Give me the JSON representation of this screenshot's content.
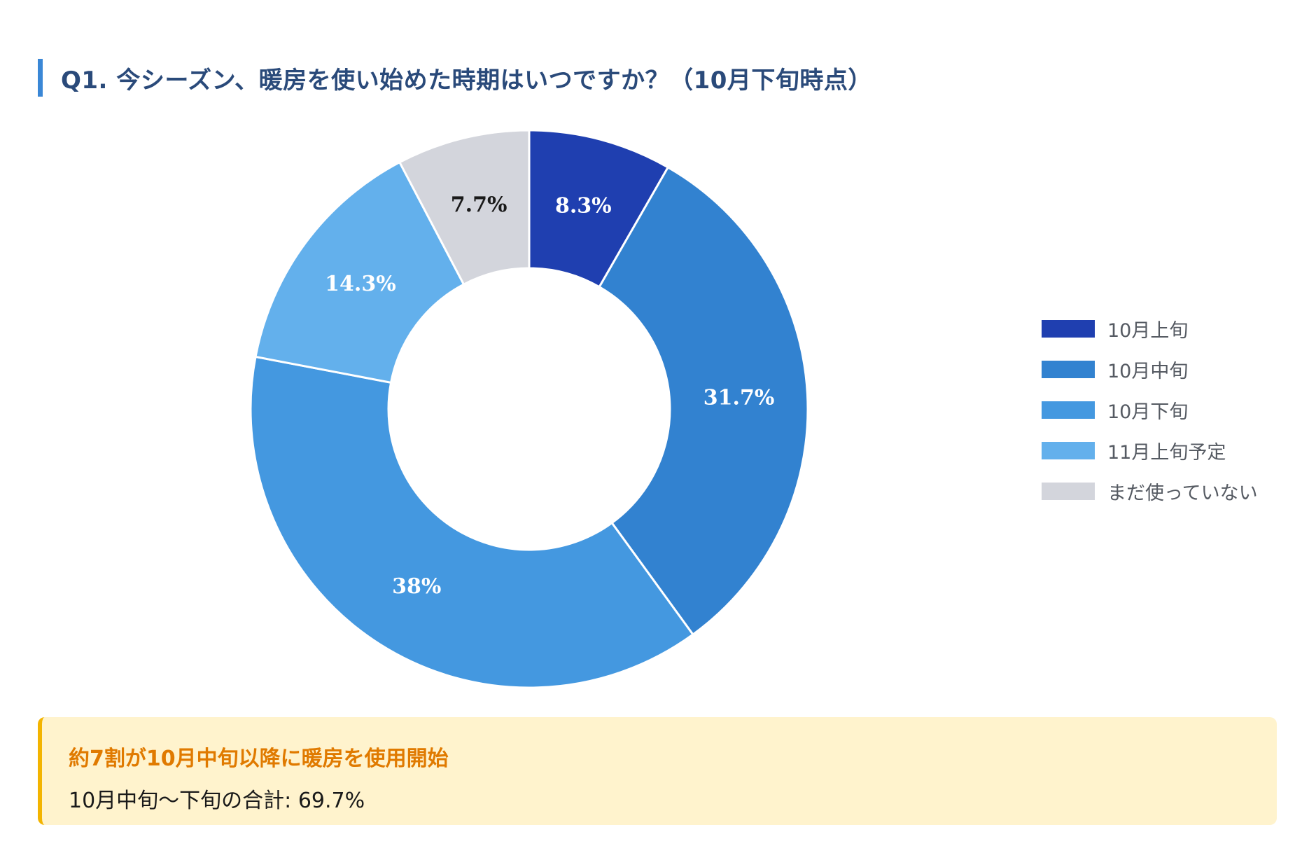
{
  "chart_data": {
    "type": "pie",
    "title": "Q1. 今シーズン、暖房を使い始めた時期はいつですか？（10月下旬時点）",
    "categories": [
      "10月上旬",
      "10月中旬",
      "10月下旬",
      "11月上旬予定",
      "まだ使っていない"
    ],
    "values": [
      8.3,
      31.7,
      38,
      14.3,
      7.7
    ],
    "value_labels": [
      "8.3%",
      "31.7%",
      "38%",
      "14.3%",
      "7.7%"
    ],
    "colors": [
      "#1f3fb0",
      "#3282d0",
      "#4498e0",
      "#63b0ec",
      "#d3d5dc"
    ],
    "label_colors": [
      "#ffffff",
      "#ffffff",
      "#ffffff",
      "#ffffff",
      "#1a1a1a"
    ],
    "donut": true,
    "legend_position": "right"
  },
  "callout": {
    "headline": "約7割が10月中旬以降に暖房を使用開始",
    "detail": "10月中旬〜下旬の合計: 69.7%"
  }
}
